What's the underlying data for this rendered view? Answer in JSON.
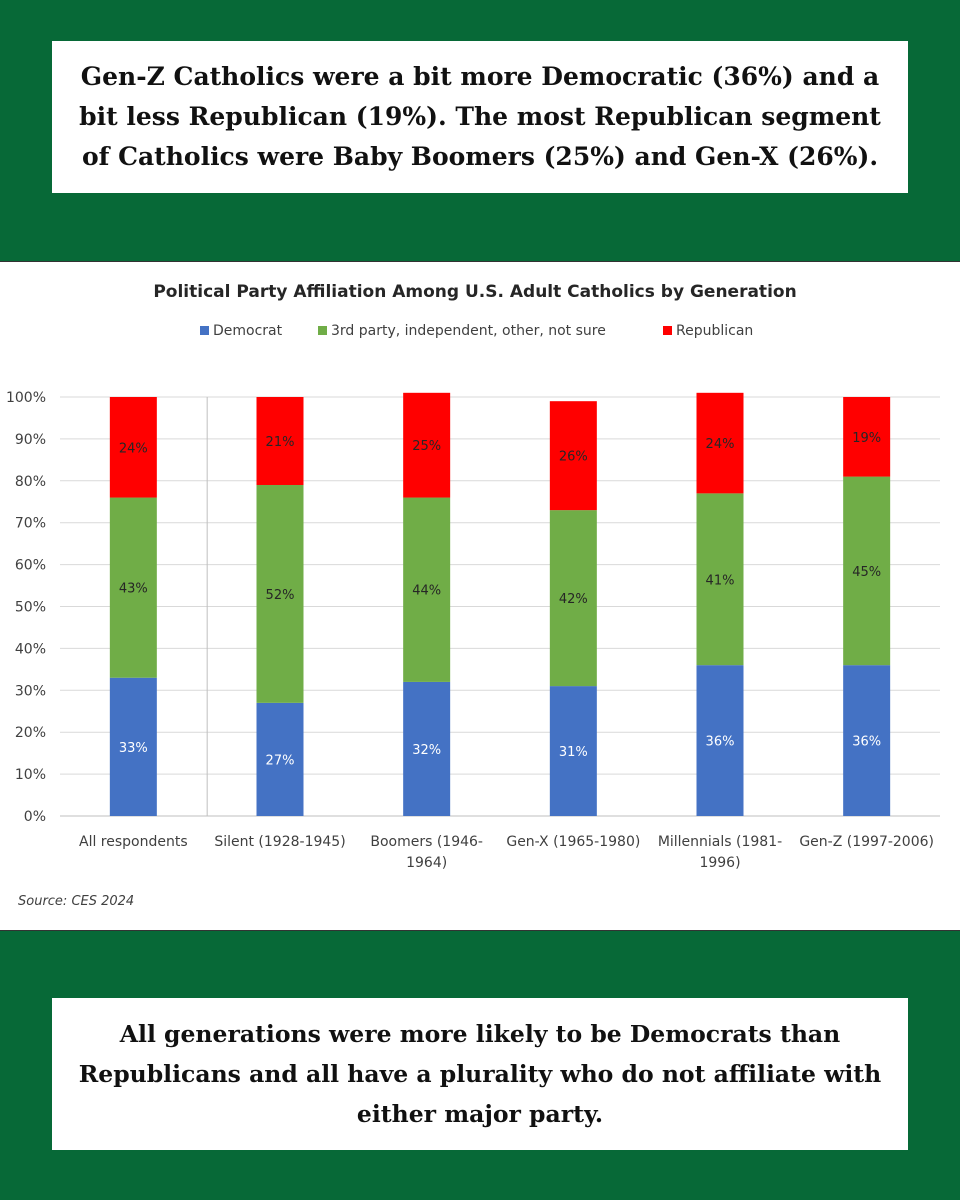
{
  "top_text": "Gen-Z Catholics were a bit more Democratic (36%) and a bit less Republican (19%). The most Republican segment of Catholics were Baby Boomers (25%) and Gen-X (26%).",
  "bottom_text": "All generations were more likely to be Democrats than Republicans and all have a plurality who do not affiliate with either major party.",
  "colors": {
    "background": "#076937",
    "democrat": "#4472c4",
    "other": "#70ad47",
    "republican": "#ff0000"
  },
  "chart_data": {
    "type": "bar",
    "stacked": true,
    "title": "Political Party Affiliation Among U.S. Adult Catholics by Generation",
    "source": "Source: CES 2024",
    "legend_position": "top",
    "grid": true,
    "ylim": [
      0,
      100
    ],
    "yticks": [
      "0%",
      "10%",
      "20%",
      "30%",
      "40%",
      "50%",
      "60%",
      "70%",
      "80%",
      "90%",
      "100%"
    ],
    "categories": [
      [
        "All respondents"
      ],
      [
        "Silent (1928-1945)"
      ],
      [
        "Boomers (1946-",
        "1964)"
      ],
      [
        "Gen-X (1965-1980)"
      ],
      [
        "Millennials (1981-",
        "1996)"
      ],
      [
        "Gen-Z (1997-2006)"
      ]
    ],
    "series": [
      {
        "name": "Democrat",
        "color": "#4472c4",
        "values": [
          33,
          27,
          32,
          31,
          36,
          36
        ],
        "labels": [
          "33%",
          "27%",
          "32%",
          "31%",
          "36%",
          "36%"
        ]
      },
      {
        "name": "3rd party, independent, other, not sure",
        "color": "#70ad47",
        "values": [
          43,
          52,
          44,
          42,
          41,
          45
        ],
        "labels": [
          "43%",
          "52%",
          "44%",
          "42%",
          "41%",
          "45%"
        ]
      },
      {
        "name": "Republican",
        "color": "#ff0000",
        "values": [
          24,
          21,
          25,
          26,
          24,
          19
        ],
        "labels": [
          "24%",
          "21%",
          "25%",
          "26%",
          "24%",
          "19%"
        ]
      }
    ]
  }
}
